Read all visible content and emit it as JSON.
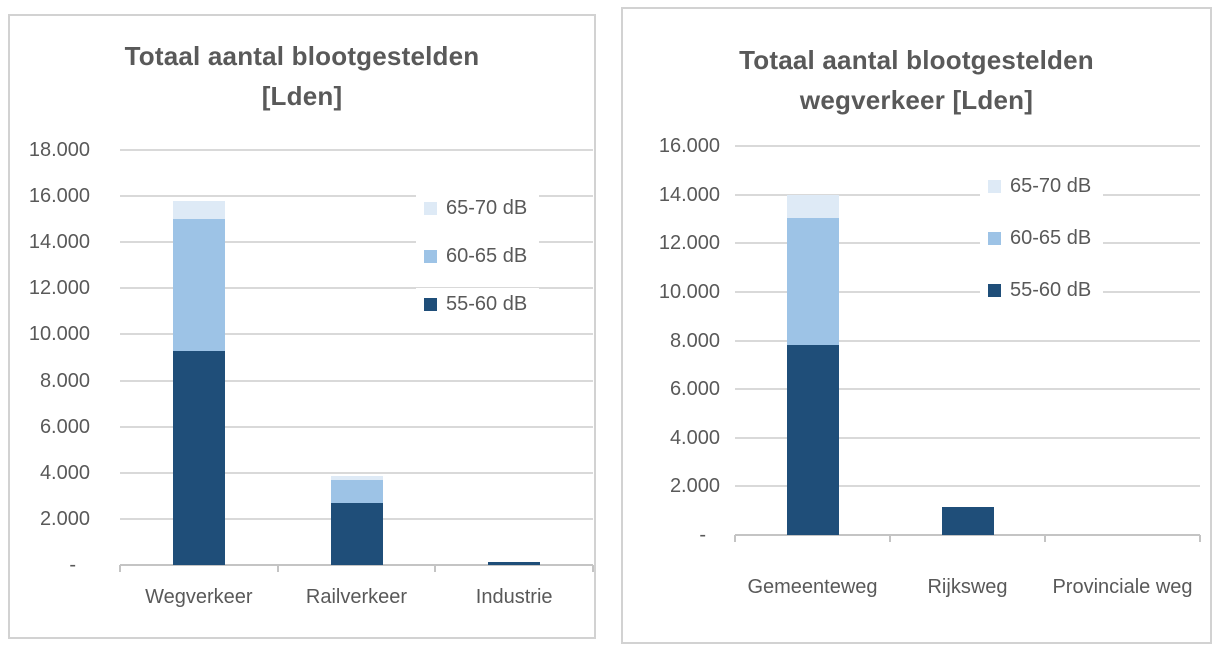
{
  "theme": {
    "background": "#FFFFFF",
    "panel_border": "#D2D2D2",
    "grid_color": "#D9D9D9",
    "axis_color": "#C4C4C4",
    "text_color": "#595959"
  },
  "chart_data": [
    {
      "type": "bar",
      "stacked": true,
      "title": "Totaal aantal blootgestelden [Lden]",
      "title_lines": [
        "Totaal aantal blootgestelden",
        "[Lden]"
      ],
      "categories": [
        "Wegverkeer",
        "Railverkeer",
        "Industrie"
      ],
      "series": [
        {
          "name": "55-60 dB",
          "color": "#1F4E79",
          "values": [
            9300,
            2700,
            150
          ]
        },
        {
          "name": "60-65 dB",
          "color": "#9DC3E6",
          "values": [
            5700,
            1000,
            0
          ]
        },
        {
          "name": "65-70 dB",
          "color": "#DEEAF6",
          "values": [
            800,
            150,
            0
          ]
        }
      ],
      "xlabel": "",
      "ylabel": "",
      "ylim": [
        0,
        18000
      ],
      "ytick_step": 2000,
      "ytick_labels": [
        "-",
        "2.000",
        "4.000",
        "6.000",
        "8.000",
        "10.000",
        "12.000",
        "14.000",
        "16.000",
        "18.000"
      ],
      "grid": true,
      "legend": {
        "position": "inside-right",
        "entries": [
          "65-70 dB",
          "60-65 dB",
          "55-60 dB"
        ]
      }
    },
    {
      "type": "bar",
      "stacked": true,
      "title": "Totaal aantal blootgestelden wegverkeer [Lden]",
      "title_lines": [
        "Totaal aantal blootgestelden",
        "wegverkeer [Lden]"
      ],
      "categories": [
        "Gemeenteweg",
        "Rijksweg",
        "Provinciale weg"
      ],
      "series": [
        {
          "name": "55-60 dB",
          "color": "#1F4E79",
          "values": [
            7800,
            1150,
            0
          ]
        },
        {
          "name": "60-65 dB",
          "color": "#9DC3E6",
          "values": [
            5250,
            0,
            0
          ]
        },
        {
          "name": "65-70 dB",
          "color": "#DEEAF6",
          "values": [
            950,
            0,
            0
          ]
        }
      ],
      "xlabel": "",
      "ylabel": "",
      "ylim": [
        0,
        16000
      ],
      "ytick_step": 2000,
      "ytick_labels": [
        "-",
        "2.000",
        "4.000",
        "6.000",
        "8.000",
        "10.000",
        "12.000",
        "14.000",
        "16.000"
      ],
      "grid": true,
      "legend": {
        "position": "inside-right",
        "entries": [
          "65-70 dB",
          "60-65 dB",
          "55-60 dB"
        ]
      }
    }
  ]
}
